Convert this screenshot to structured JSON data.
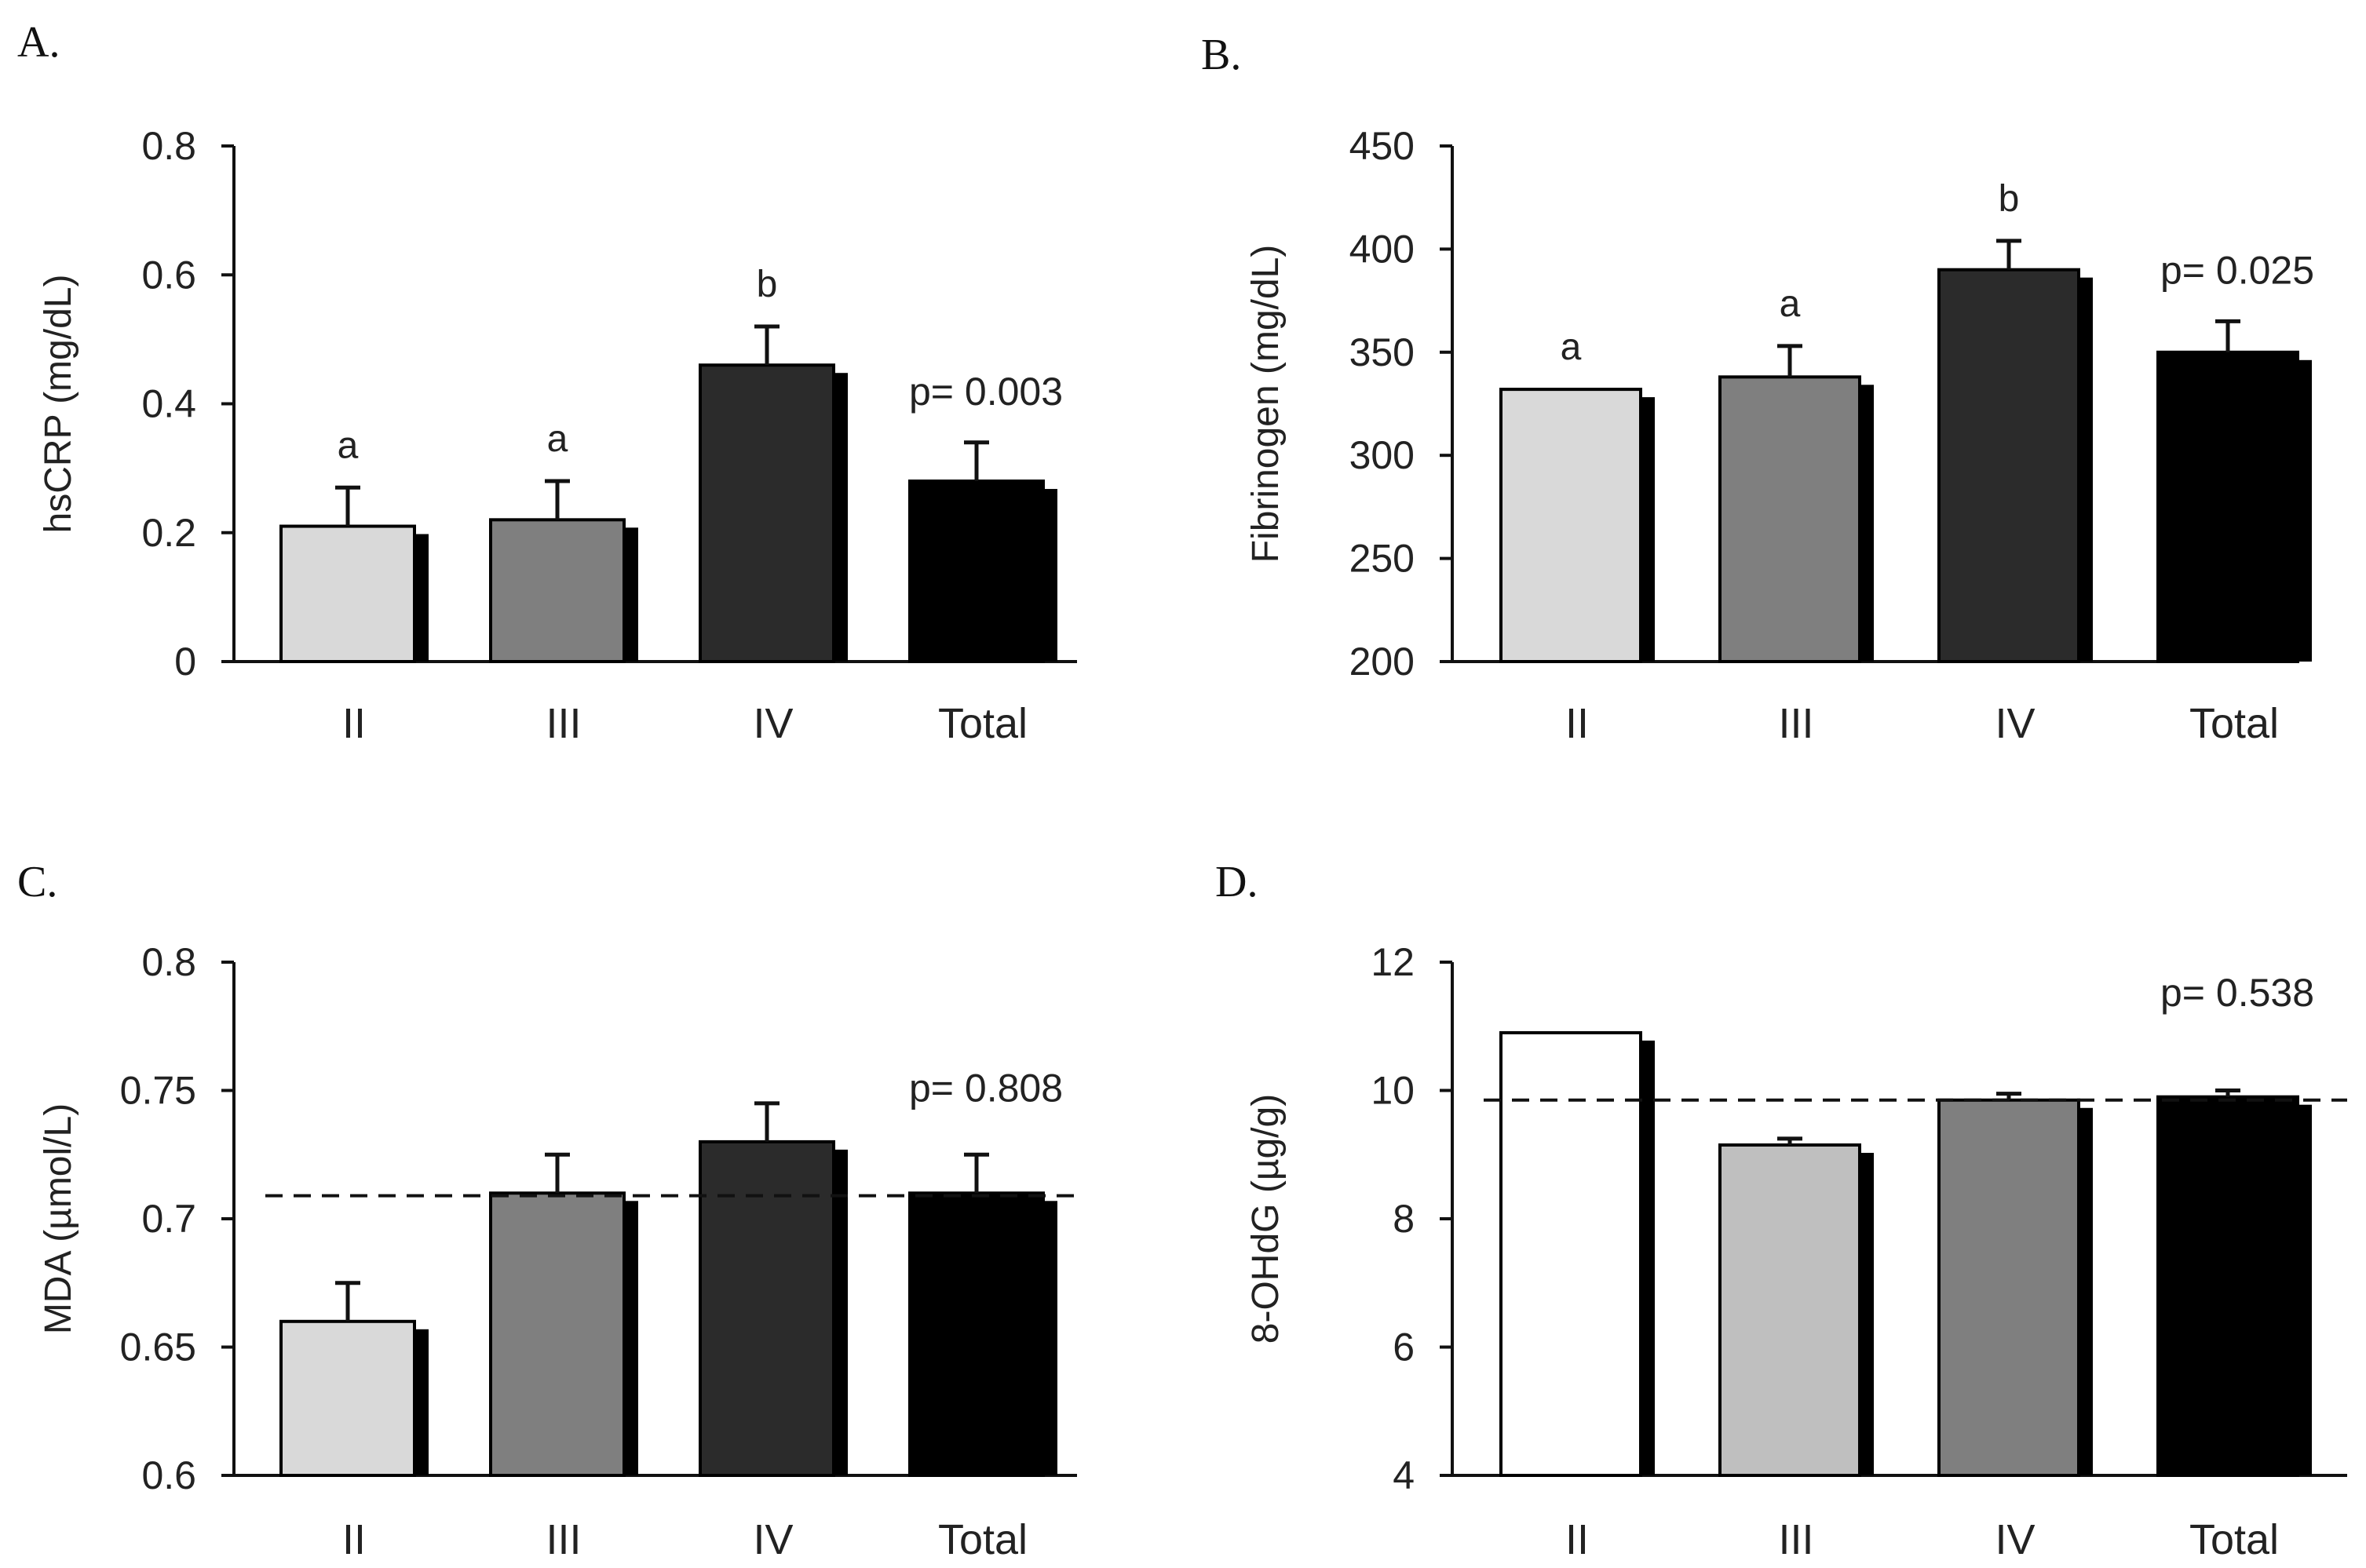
{
  "colors": {
    "axis": "#111111",
    "shadow": "#000000",
    "error": "#111111",
    "dashed": "#111111"
  },
  "chart_data": [
    {
      "id": "A",
      "type": "bar",
      "panel_label": "A.",
      "categories": [
        "II",
        "III",
        "IV",
        "Total"
      ],
      "values": [
        0.21,
        0.22,
        0.46,
        0.28
      ],
      "errors": [
        0.06,
        0.06,
        0.06,
        0.06
      ],
      "ylabel": "hsCRP  (mg/dL)",
      "ylim": [
        0,
        0.8
      ],
      "yticks": [
        0,
        0.2,
        0.4,
        0.6,
        0.8
      ],
      "ytick_labels": [
        "0",
        "0.2",
        "0.4",
        "0.6",
        "0.8"
      ],
      "significance": [
        "a",
        "a",
        "b",
        ""
      ],
      "p_text": "p= 0.003",
      "bar_colors": [
        "#d9d9d9",
        "#7f7f7f",
        "#2b2b2b",
        "#000000"
      ],
      "reference_line": null
    },
    {
      "id": "B",
      "type": "bar",
      "panel_label": "B.",
      "categories": [
        "II",
        "III",
        "IV",
        "Total"
      ],
      "values": [
        332,
        338,
        390,
        350
      ],
      "errors": [
        0,
        15,
        14,
        15
      ],
      "ylabel": "Fibrinogen (mg/dL)",
      "ylim": [
        200,
        450
      ],
      "yticks": [
        200,
        250,
        300,
        350,
        400,
        450
      ],
      "ytick_labels": [
        "200",
        "250",
        "300",
        "350",
        "400",
        "450"
      ],
      "significance": [
        "a",
        "a",
        "b",
        ""
      ],
      "p_text": "p= 0.025",
      "bar_colors": [
        "#d9d9d9",
        "#7f7f7f",
        "#2b2b2b",
        "#000000"
      ],
      "reference_line": null
    },
    {
      "id": "C",
      "type": "bar",
      "panel_label": "C.",
      "categories": [
        "II",
        "III",
        "IV",
        "Total"
      ],
      "values": [
        0.66,
        0.71,
        0.73,
        0.71
      ],
      "errors": [
        0.015,
        0.015,
        0.015,
        0.015
      ],
      "ylabel": "MDA (µmol/L)",
      "ylim": [
        0.6,
        0.8
      ],
      "yticks": [
        0.6,
        0.65,
        0.7,
        0.75,
        0.8
      ],
      "ytick_labels": [
        "0.6",
        "0.65",
        "0.7",
        "0.75",
        "0.8"
      ],
      "significance": [
        "",
        "",
        "",
        ""
      ],
      "p_text": "p= 0.808",
      "bar_colors": [
        "#d9d9d9",
        "#7f7f7f",
        "#2b2b2b",
        "#000000"
      ],
      "reference_line": 0.709
    },
    {
      "id": "D",
      "type": "bar",
      "panel_label": "D.",
      "categories": [
        "II",
        "III",
        "IV",
        "Total"
      ],
      "values": [
        10.9,
        9.15,
        9.85,
        9.9
      ],
      "errors": [
        0,
        0.1,
        0.1,
        0.1
      ],
      "ylabel": "8-OHdG (µg/g)",
      "ylim": [
        4,
        12
      ],
      "yticks": [
        4,
        6,
        8,
        10,
        12
      ],
      "ytick_labels": [
        "4",
        "6",
        "8",
        "10",
        "12"
      ],
      "significance": [
        "",
        "",
        "",
        ""
      ],
      "p_text": "p= 0.538",
      "bar_colors": [
        "#ffffff",
        "#bfbfbf",
        "#7f7f7f",
        "#000000"
      ],
      "reference_line": 9.85
    }
  ]
}
